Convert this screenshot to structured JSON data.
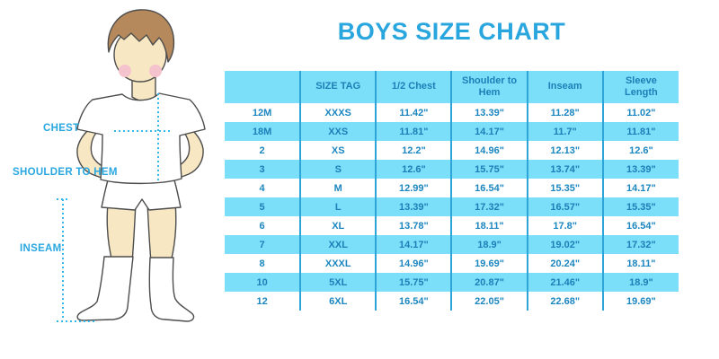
{
  "chart_data": {
    "type": "table",
    "title": "BOYS SIZE CHART",
    "columns": [
      "",
      "SIZE TAG",
      "1/2 Chest",
      "Shoulder to Hem",
      "Inseam",
      "Sleeve Length"
    ],
    "rows": [
      [
        "12M",
        "XXXS",
        "11.42\"",
        "13.39\"",
        "11.28\"",
        "11.02\""
      ],
      [
        "18M",
        "XXS",
        "11.81\"",
        "14.17\"",
        "11.7\"",
        "11.81\""
      ],
      [
        "2",
        "XS",
        "12.2\"",
        "14.96\"",
        "12.13\"",
        "12.6\""
      ],
      [
        "3",
        "S",
        "12.6\"",
        "15.75\"",
        "13.74\"",
        "13.39\""
      ],
      [
        "4",
        "M",
        "12.99\"",
        "16.54\"",
        "15.35\"",
        "14.17\""
      ],
      [
        "5",
        "L",
        "13.39\"",
        "17.32\"",
        "16.57\"",
        "15.35\""
      ],
      [
        "6",
        "XL",
        "13.78\"",
        "18.11\"",
        "17.8\"",
        "16.54\""
      ],
      [
        "7",
        "XXL",
        "14.17\"",
        "18.9\"",
        "19.02\"",
        "17.32\""
      ],
      [
        "8",
        "XXXL",
        "14.96\"",
        "19.69\"",
        "20.24\"",
        "18.11\""
      ],
      [
        "10",
        "5XL",
        "15.75\"",
        "20.87\"",
        "21.46\"",
        "18.9\""
      ],
      [
        "12",
        "6XL",
        "16.54\"",
        "22.05\"",
        "22.68\"",
        "19.69\""
      ]
    ],
    "layout": {
      "striped_rows": [
        "18M",
        "3",
        "5",
        "7",
        "10"
      ],
      "header_background": "#7BDFF9",
      "stripe_background": "#7BDFF9",
      "units": "inches"
    }
  },
  "illustration": {
    "labels": {
      "chest": "CHEST",
      "shoulder_to_hem": "SHOULDER TO HEM",
      "inseam": "INSEAM"
    },
    "colors": {
      "skin": "#F8E7C3",
      "hair": "#B5895B",
      "cheek": "#F5C3CD",
      "garment": "#FFFFFF",
      "outline": "#4D4D4D",
      "measure_line": "#35B9EC"
    }
  },
  "colors": {
    "title_blue": "#2AA6DF",
    "table_light_blue": "#7BDFF9",
    "table_text_blue": "#1B86BF",
    "table_border_blue": "#2DA5D8",
    "label_blue": "#29A7E0"
  }
}
